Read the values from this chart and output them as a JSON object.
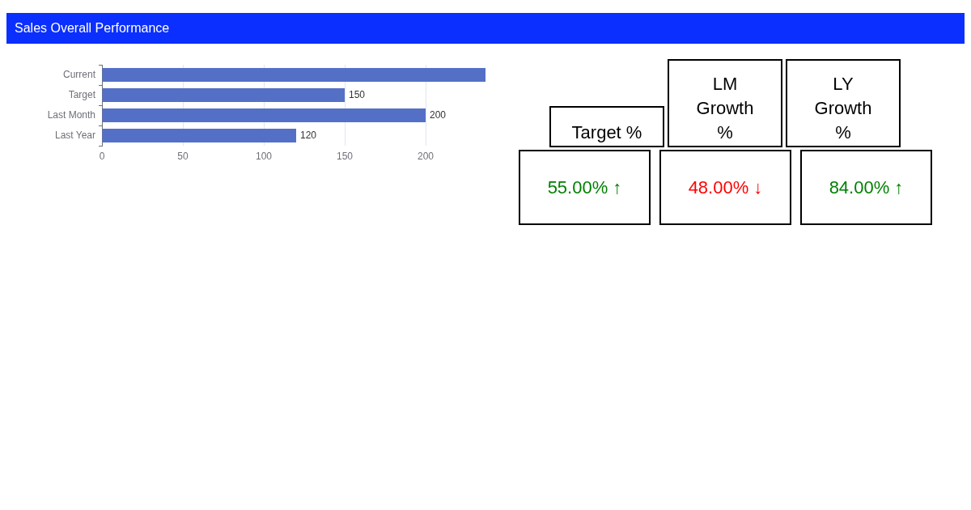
{
  "chart_data": [
    {
      "type": "bar",
      "title": "Sales Overall Performance",
      "orientation": "horizontal",
      "categories": [
        "Current",
        "Target",
        "Last Month",
        "Last Year"
      ],
      "values": [
        237,
        150,
        200,
        120
      ],
      "color": "#5470c6",
      "value_labels": [
        null,
        "150",
        "200",
        "120"
      ],
      "xlim": [
        0,
        237
      ],
      "xticks": [
        0,
        50,
        100,
        150,
        200
      ],
      "grid": "x",
      "legend": false
    },
    {
      "type": "other",
      "categories": [
        "Target %",
        "LM Growth %",
        "LY Growth %"
      ],
      "value_labels": [
        "55.00% ↑",
        "48.00% ↓",
        "84.00% ↑"
      ],
      "colors": [
        "#008000",
        "#ff0000",
        "#008000"
      ]
    }
  ]
}
